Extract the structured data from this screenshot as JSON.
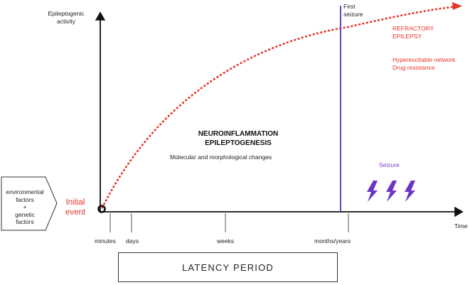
{
  "y_axis_label": [
    "Epileptogenic",
    "activity"
  ],
  "x_axis_label": "Time",
  "first_seizure_label": [
    "First",
    "seizure"
  ],
  "refractory_label": [
    "REFRACTORY",
    "EPILEPSY"
  ],
  "outcomes": [
    "Hyperexcitable network",
    "Drug resistance"
  ],
  "central_title": [
    "NEUROINFLAMMATION",
    "EPILEPTOGENESIS"
  ],
  "central_subtitle": "Molecular and morphological changes",
  "seizure_label": "Seizure",
  "seizure_icons": [
    "lightning-bolt",
    "lightning-bolt",
    "lightning-bolt"
  ],
  "factors": {
    "environmental": [
      "environmental",
      "factors"
    ],
    "plus": "+",
    "genetic": [
      "genetic",
      "factors"
    ]
  },
  "initial_event": [
    "Initial",
    "event"
  ],
  "time_ticks": [
    "minutes",
    "days",
    "weeks",
    "months/years"
  ],
  "latency_period": "LATENCY PERIOD",
  "colors": {
    "curve": "#e8342a",
    "text_red": "#e8342a",
    "seizure_line": "#6a3ec8",
    "bolt": "#6b35c6",
    "axis": "#111111"
  }
}
